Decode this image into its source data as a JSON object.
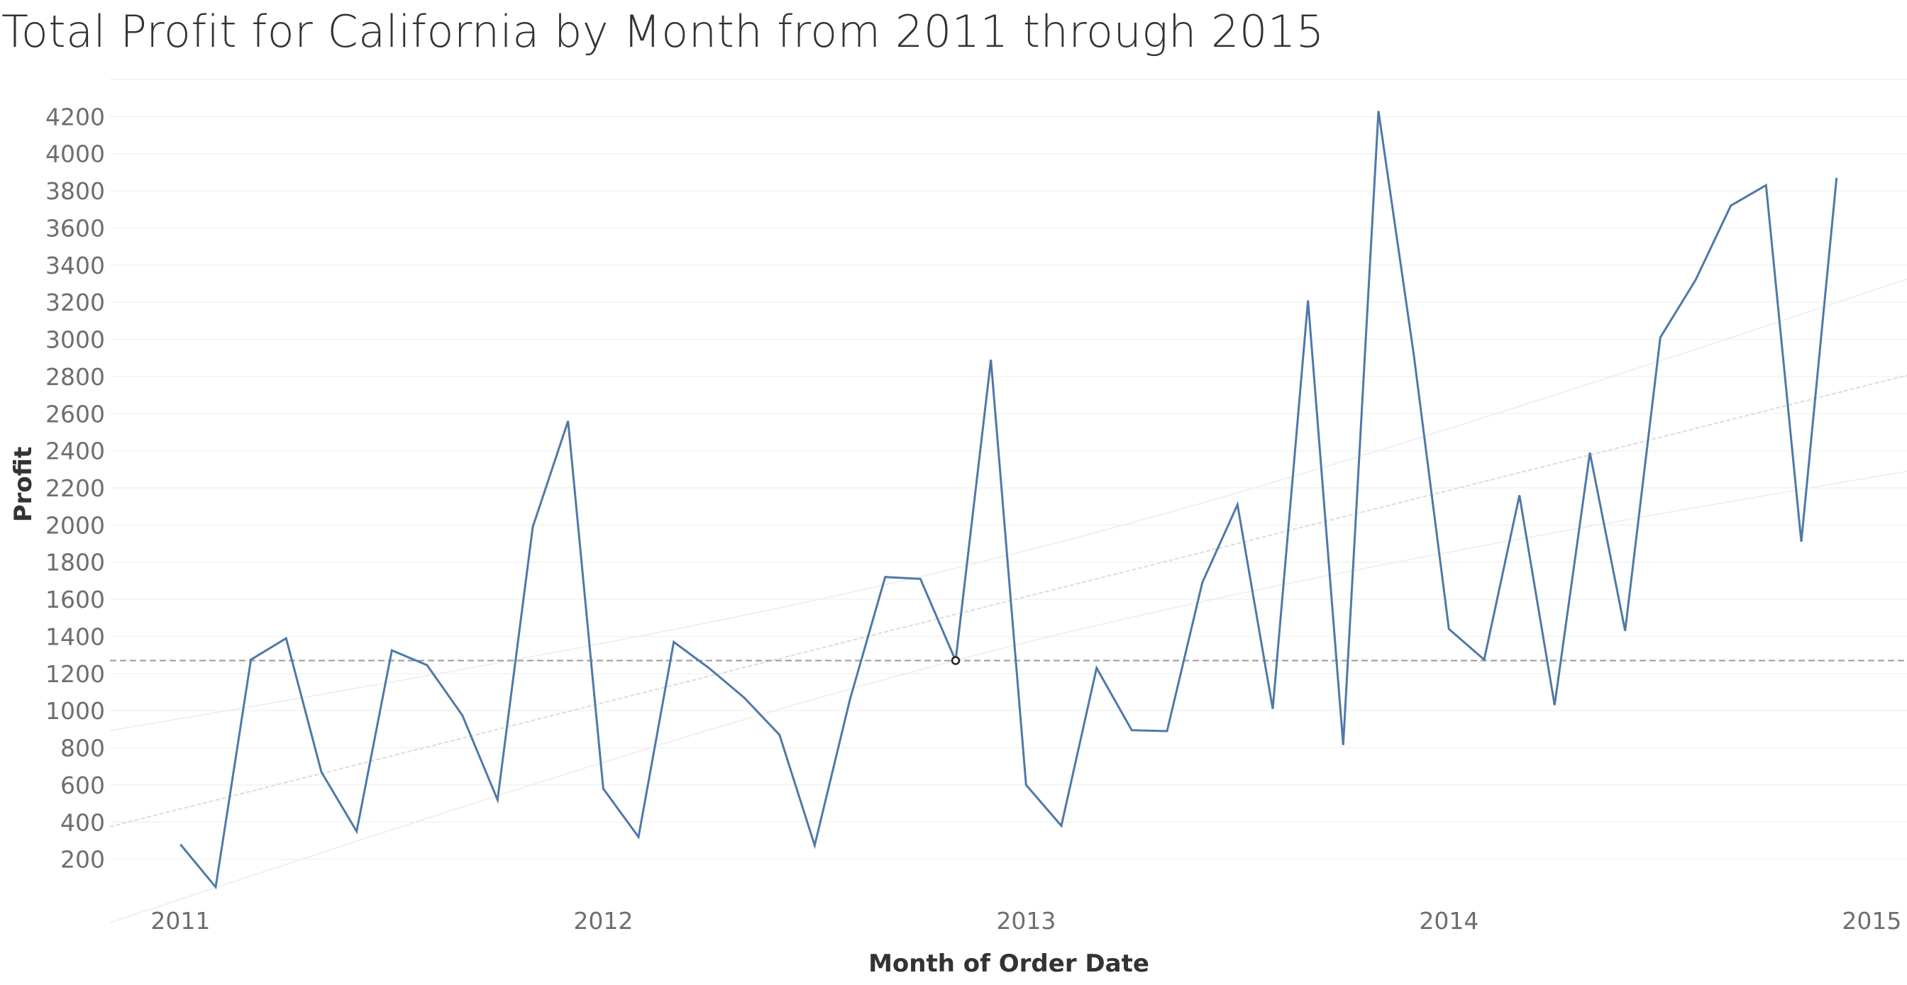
{
  "chart_data": {
    "type": "line",
    "title": "Total Profit for California by Month from 2011 through 2015",
    "xlabel": "Month of Order Date",
    "ylabel": "Profit",
    "x_tick_labels": [
      "2011",
      "2012",
      "2013",
      "2014",
      "2015"
    ],
    "y_ticks": [
      200,
      400,
      600,
      800,
      1000,
      1200,
      1400,
      1600,
      1800,
      2000,
      2200,
      2400,
      2600,
      2800,
      3000,
      3200,
      3400,
      3600,
      3800,
      4000,
      4200
    ],
    "ylim": [
      0,
      4400
    ],
    "xlim": [
      "2010-11",
      "2015-02"
    ],
    "grid": true,
    "colors": {
      "line": "#4e79a7",
      "reference": "#9a9a9a",
      "grid": "#f2f2f2",
      "trend": "#dcdcdc"
    },
    "reference_line": {
      "type": "average",
      "value": 1270,
      "style": "dashed"
    },
    "highlighted_point": "2012-11",
    "series": [
      {
        "x": [
          "2011-01",
          "2011-02",
          "2011-03",
          "2011-04",
          "2011-05",
          "2011-06",
          "2011-07",
          "2011-08",
          "2011-09",
          "2011-10",
          "2011-11",
          "2011-12",
          "2012-01",
          "2012-02",
          "2012-03",
          "2012-04",
          "2012-05",
          "2012-06",
          "2012-07",
          "2012-08",
          "2012-09",
          "2012-10",
          "2012-11",
          "2012-12",
          "2013-01",
          "2013-02",
          "2013-03",
          "2013-04",
          "2013-05",
          "2013-06",
          "2013-07",
          "2013-08",
          "2013-09",
          "2013-10",
          "2013-11",
          "2013-12",
          "2014-01",
          "2014-02",
          "2014-03",
          "2014-04",
          "2014-05",
          "2014-06",
          "2014-07",
          "2014-08",
          "2014-09",
          "2014-10",
          "2014-11",
          "2014-12"
        ],
        "values": [
          280,
          50,
          1275,
          1390,
          670,
          350,
          1325,
          1245,
          975,
          520,
          1990,
          2560,
          580,
          320,
          1370,
          1230,
          1070,
          870,
          275,
          1060,
          1720,
          1710,
          1270,
          2890,
          600,
          380,
          1230,
          895,
          890,
          1690,
          2110,
          1010,
          3210,
          815,
          4230,
          2920,
          1440,
          1275,
          2160,
          1030,
          2390,
          1430,
          3010,
          3320,
          3720,
          3830,
          1910,
          3870
        ]
      }
    ]
  }
}
